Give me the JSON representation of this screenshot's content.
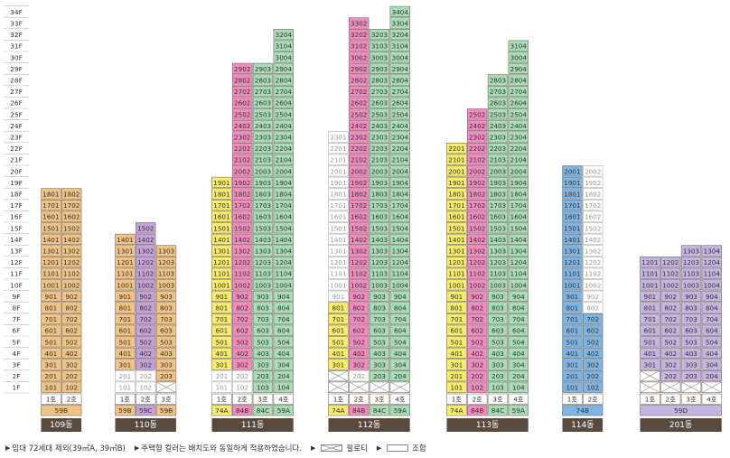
{
  "floor_labels": [
    "1F",
    "2F",
    "3F",
    "4F",
    "5F",
    "6F",
    "7F",
    "8F",
    "9F",
    "10F",
    "11F",
    "12F",
    "13F",
    "14F",
    "15F",
    "16F",
    "17F",
    "18F",
    "19F",
    "20F",
    "21F",
    "22F",
    "23F",
    "24F",
    "25F",
    "26F",
    "27F",
    "28F",
    "29F",
    "30F",
    "31F",
    "32F",
    "33F",
    "34F"
  ],
  "colors": {
    "59A": "#a8dcb7",
    "59B": "#f0c283",
    "59C": "#c4a2d9",
    "59D": "#c4b4e0",
    "74A": "#f6ec6c",
    "74B": "#7eb4e4",
    "84B": "#f28ac0",
    "84C": "#a8dcb7",
    "empty": "#ffffff",
    "banner": "#5a4a3e",
    "text": "#333333",
    "faint": "#9a9a9a"
  },
  "buildings": [
    {
      "name": "109동",
      "lines": [
        {
          "ho": "1호",
          "type": "59B",
          "top": 18
        },
        {
          "ho": "2호",
          "type": "59B",
          "top": 18
        }
      ],
      "type_labels": [
        {
          "text": "59B",
          "type": "59B",
          "span": 2
        }
      ],
      "empty_units": [],
      "piloti": []
    },
    {
      "name": "110동",
      "lines": [
        {
          "ho": "1호",
          "type": "59B",
          "top": 14
        },
        {
          "ho": "2호",
          "type": "59C",
          "top": 15
        },
        {
          "ho": "3호",
          "type": "59B",
          "top": 13
        }
      ],
      "type_labels": [
        {
          "text": "59B",
          "type": "59B",
          "span": 1
        },
        {
          "text": "59C",
          "type": "59C",
          "span": 1
        },
        {
          "text": "59B",
          "type": "59B",
          "span": 1
        }
      ],
      "empty_units": [
        "101",
        "102",
        "201",
        "202"
      ],
      "piloti": [
        "103"
      ]
    },
    {
      "name": "111동",
      "lines": [
        {
          "ho": "1호",
          "type": "74A",
          "top": 19
        },
        {
          "ho": "2호",
          "type": "84B",
          "top": 29
        },
        {
          "ho": "3호",
          "type": "84C",
          "top": 29
        },
        {
          "ho": "4호",
          "type": "59A",
          "top": 32
        }
      ],
      "type_labels": [
        {
          "text": "74A",
          "type": "74A",
          "span": 1
        },
        {
          "text": "84B",
          "type": "84B",
          "span": 1
        },
        {
          "text": "84C",
          "type": "84C",
          "span": 1
        },
        {
          "text": "59A",
          "type": "59A",
          "span": 1
        }
      ],
      "empty_units": [
        "101",
        "102",
        "201",
        "202"
      ],
      "piloti": []
    },
    {
      "name": "112동",
      "lines": [
        {
          "ho": "1호",
          "type": "74A",
          "top": 23
        },
        {
          "ho": "2호",
          "type": "84B",
          "top": 33
        },
        {
          "ho": "3호",
          "type": "84C",
          "top": 32
        },
        {
          "ho": "4호",
          "type": "59A",
          "top": 34
        }
      ],
      "type_labels": [
        {
          "text": "74A",
          "type": "74A",
          "span": 1
        },
        {
          "text": "84B",
          "type": "84B",
          "span": 1
        },
        {
          "text": "84C",
          "type": "84C",
          "span": 1
        },
        {
          "text": "59A",
          "type": "59A",
          "span": 1
        }
      ],
      "empty_units": [
        "901",
        "1001",
        "1101",
        "1201",
        "1301",
        "1401",
        "1501",
        "1601",
        "1701",
        "1801",
        "1901",
        "2001",
        "2101",
        "2201",
        "2301",
        "202"
      ],
      "piloti": [
        "101",
        "102",
        "103",
        "104",
        "201"
      ]
    },
    {
      "name": "113동",
      "lines": [
        {
          "ho": "1호",
          "type": "74A",
          "top": 22
        },
        {
          "ho": "2호",
          "type": "84B",
          "top": 25
        },
        {
          "ho": "3호",
          "type": "84C",
          "top": 28
        },
        {
          "ho": "4호",
          "type": "59A",
          "top": 31
        }
      ],
      "type_labels": [
        {
          "text": "74A",
          "type": "74A",
          "span": 1
        },
        {
          "text": "84B",
          "type": "84B",
          "span": 1
        },
        {
          "text": "84C",
          "type": "84C",
          "span": 1
        },
        {
          "text": "59A",
          "type": "59A",
          "span": 1
        }
      ],
      "empty_units": [],
      "piloti": []
    },
    {
      "name": "114동",
      "lines": [
        {
          "ho": "1호",
          "type": "74B",
          "top": 20
        },
        {
          "ho": "2호",
          "type": "74B",
          "top": 20
        }
      ],
      "type_labels": [
        {
          "text": "74B",
          "type": "74B",
          "span": 2
        }
      ],
      "empty_units": [
        "802",
        "902",
        "1002",
        "1102",
        "1202",
        "1302",
        "1402",
        "1502",
        "1602",
        "1702",
        "1802",
        "1902",
        "2002"
      ],
      "piloti": []
    },
    {
      "name": "201동",
      "lines": [
        {
          "ho": "1호",
          "type": "59D",
          "top": 12
        },
        {
          "ho": "2호",
          "type": "59D",
          "top": 12
        },
        {
          "ho": "3호",
          "type": "59D",
          "top": 13
        },
        {
          "ho": "4호",
          "type": "59D",
          "top": 13
        }
      ],
      "type_labels": [
        {
          "text": "59D",
          "type": "59D",
          "span": 4
        }
      ],
      "empty_units": [],
      "piloti": [
        "101",
        "102",
        "103",
        "104",
        "201"
      ]
    }
  ],
  "legend": {
    "note1": "임대 72세대 제외(39㎡A, 39㎡B)",
    "note2": "주택형 컬러는 배치도와 동일하게 적용하였습니다.",
    "piloti_label": "필로티",
    "combined_label": "조합"
  }
}
